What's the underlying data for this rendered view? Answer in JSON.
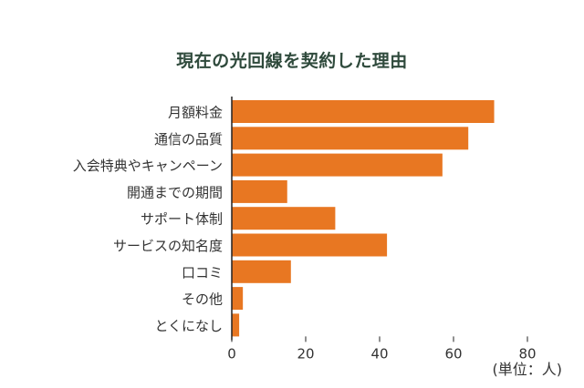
{
  "chart_data": {
    "type": "bar",
    "orientation": "horizontal",
    "title": "現在の光回線を契約した理由",
    "unit_label": "(単位：人)",
    "categories": [
      "月額料金",
      "通信の品質",
      "入会特典やキャンペーン",
      "開通までの期間",
      "サポート体制",
      "サービスの知名度",
      "口コミ",
      "その他",
      "とくになし"
    ],
    "values": [
      71,
      64,
      57,
      15,
      28,
      42,
      16,
      3,
      2
    ],
    "xlim": [
      0,
      80
    ],
    "xticks": [
      0,
      20,
      40,
      60,
      80
    ],
    "grid": false,
    "legend": "none",
    "bar_color": "#e87722",
    "title_color": "#2f4a3c"
  }
}
